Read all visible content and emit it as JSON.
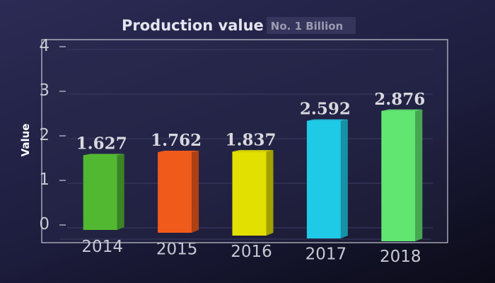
{
  "chart_data": {
    "type": "bar",
    "title": "Production value",
    "subtitle": "No. 1 Billion",
    "xlabel": "",
    "ylabel": "Value",
    "categories": [
      "2014",
      "2015",
      "2016",
      "2017",
      "2018"
    ],
    "values": [
      1.627,
      1.762,
      1.837,
      2.592,
      2.876
    ],
    "value_labels": [
      "1.627",
      "1.762",
      "1.837",
      "2.592",
      "2.876"
    ],
    "bar_colors": [
      "#52b832",
      "#f05a1a",
      "#e2e000",
      "#1ecae6",
      "#62e672"
    ],
    "yticks": [
      "0",
      "1",
      "2",
      "3",
      "4"
    ],
    "ylim": [
      0,
      4
    ],
    "grid": true,
    "legend": "none"
  }
}
